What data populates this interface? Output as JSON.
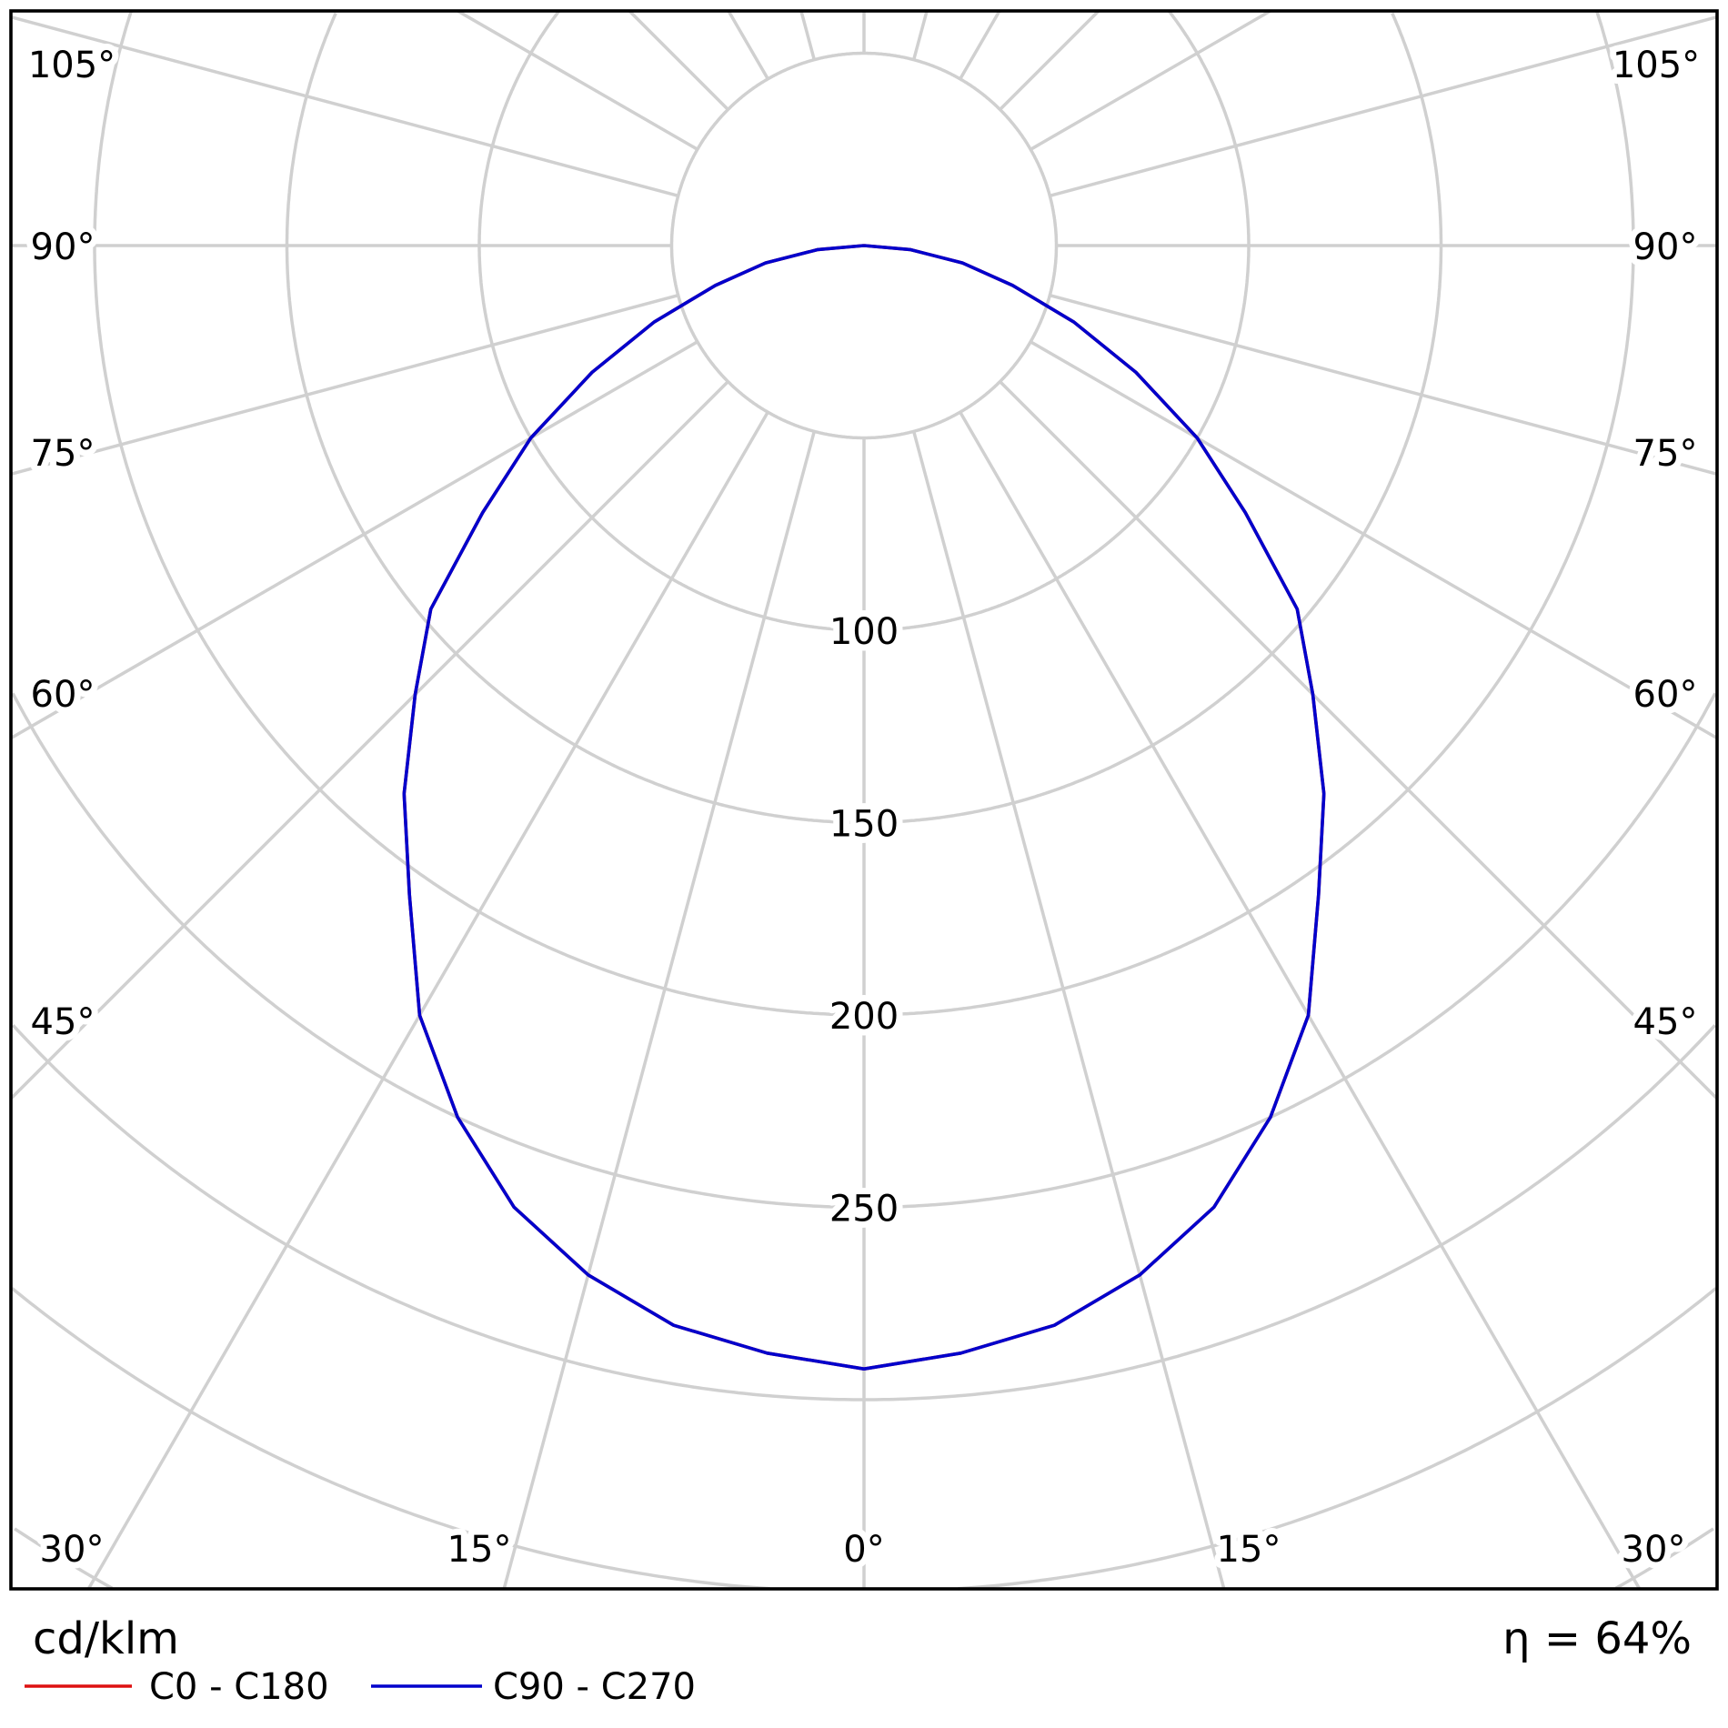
{
  "chart_data": {
    "type": "polar",
    "unit_label": "cd/klm",
    "efficiency_label": "η = 64%",
    "radial_ticks": [
      100,
      150,
      200,
      250
    ],
    "radial_rings": [
      50,
      100,
      150,
      200,
      250,
      300,
      350,
      400,
      450
    ],
    "spoke_step_deg": 15,
    "angle_tick_labels": {
      "a105": "105°",
      "a90": "90°",
      "a75": "75°",
      "a60": "60°",
      "a45": "45°",
      "a30": "30°",
      "a15": "15°",
      "a0": "0°"
    },
    "grid": true,
    "grid_color": "#d0d0d0",
    "angles": [
      0,
      5,
      10,
      15,
      20,
      25,
      30,
      35,
      40,
      45,
      50,
      55,
      60,
      65,
      70,
      75,
      80,
      85,
      90
    ],
    "series": [
      {
        "name": "C0 - C180",
        "color": "#dd1111",
        "values": [
          292,
          289,
          285,
          277,
          266,
          250,
          231,
          206,
          186,
          165,
          147,
          121,
          100,
          78,
          58,
          40,
          26,
          12,
          0
        ]
      },
      {
        "name": "C90 - C270",
        "color": "#0000cc",
        "values": [
          292,
          289,
          285,
          277,
          266,
          250,
          231,
          206,
          186,
          165,
          147,
          121,
          100,
          78,
          58,
          40,
          26,
          12,
          0
        ]
      }
    ],
    "legend_placement": "bottom-left"
  }
}
